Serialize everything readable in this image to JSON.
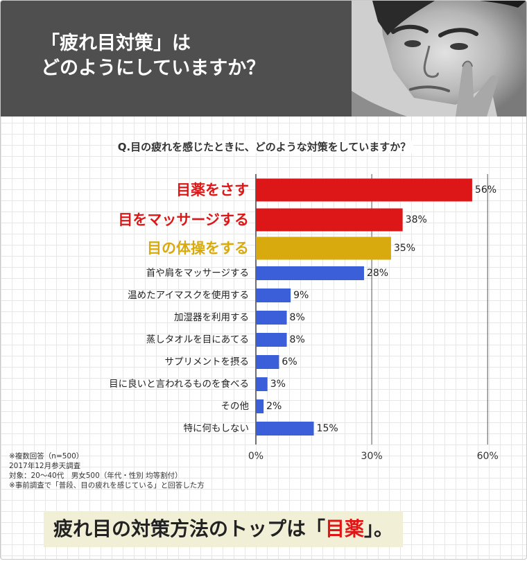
{
  "header": {
    "title_line1": "「疲れ目対策」は",
    "title_line2": "どのようにしていますか？"
  },
  "colors": {
    "top": "#dd1717",
    "second": "#dd1717",
    "third": "#d8aa0e",
    "normal": "#3b5fd9",
    "header_bg": "#4f4f4f"
  },
  "chart_data": {
    "type": "bar",
    "orientation": "horizontal",
    "title": "Q.目の疲れを感じたときに、どのような対策をしていますか？",
    "categories": [
      "目薬をさす",
      "目をマッサージする",
      "目の体操をする",
      "首や肩をマッサージする",
      "温めたアイマスクを使用する",
      "加湿器を利用する",
      "蒸しタオルを目にあてる",
      "サプリメントを摂る",
      "目に良いと言われるものを食べる",
      "その他",
      "特に何もしない"
    ],
    "values": [
      56,
      38,
      35,
      28,
      9,
      8,
      8,
      6,
      3,
      2,
      15
    ],
    "highlight": [
      "top",
      "second",
      "third",
      "normal",
      "normal",
      "normal",
      "normal",
      "normal",
      "normal",
      "normal",
      "normal"
    ],
    "xlim": [
      0,
      60
    ],
    "xticks": [
      0,
      30,
      60
    ],
    "unit": "%",
    "xlabel": "",
    "ylabel": ""
  },
  "footnote": {
    "line1": "※複数回答（n=500）",
    "line2": "2017年12月参天調査",
    "line3": "対象：20〜40代　男女500（年代・性別 均等割付）",
    "line4": "※事前調査で「普段、目の疲れを感じている」と回答した方"
  },
  "conclusion": {
    "pre": "疲れ目の対策方法のトップは「",
    "highlight": "目薬",
    "post": "」。"
  }
}
